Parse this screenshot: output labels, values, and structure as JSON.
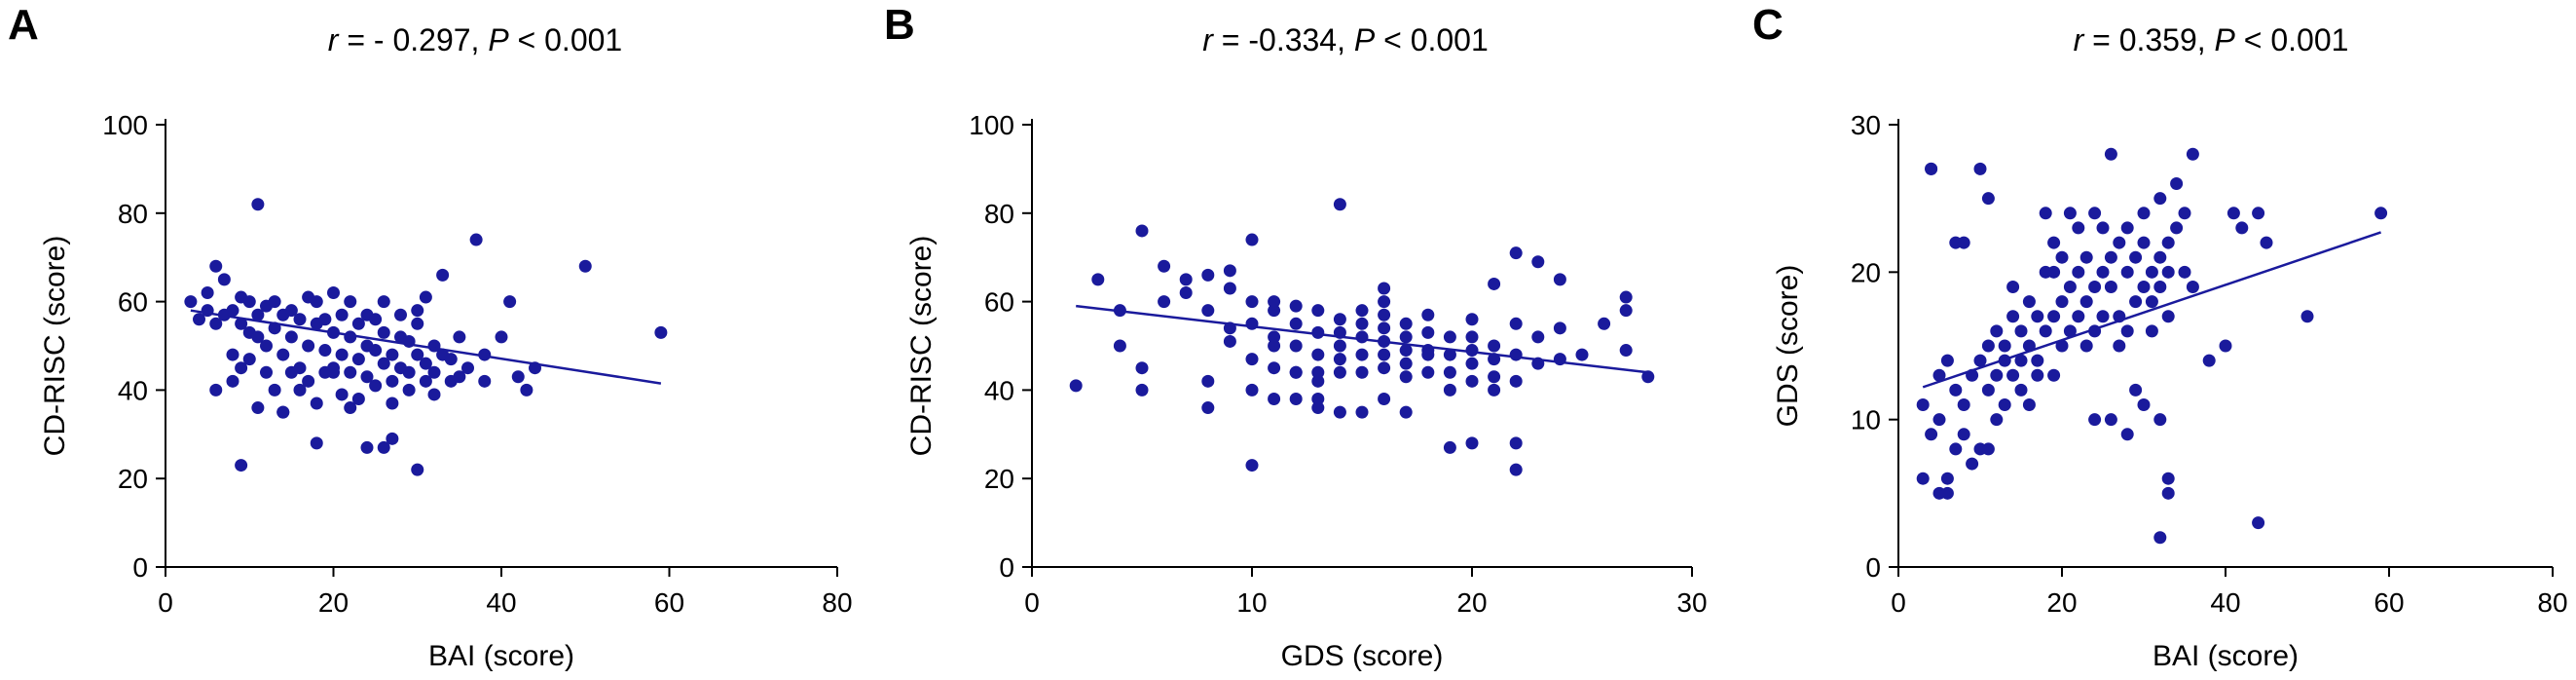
{
  "chart_data": [
    {
      "type": "scatter",
      "panel_label": "A",
      "title_r_label": "r",
      "title_r_value": " = - 0.297, ",
      "title_p_label": "P",
      "title_p_value": " < 0.001",
      "xlabel": "BAI (score)",
      "ylabel": "CD-RISC (score)",
      "xlim": [
        0,
        80
      ],
      "ylim": [
        0,
        100
      ],
      "xticks": [
        "0",
        "20",
        "40",
        "60",
        "80"
      ],
      "yticks": [
        "0",
        "20",
        "40",
        "60",
        "80",
        "100"
      ],
      "xtick_values": [
        0,
        20,
        40,
        60,
        80
      ],
      "ytick_values": [
        0,
        20,
        40,
        60,
        80,
        100
      ],
      "trendline": {
        "x": [
          3,
          59
        ],
        "y": [
          58,
          41.5
        ]
      },
      "marker_color": "#1a1a9c",
      "x": [
        3,
        4,
        5,
        5,
        6,
        6,
        7,
        7,
        8,
        8,
        9,
        9,
        9,
        10,
        10,
        10,
        11,
        11,
        11,
        12,
        12,
        12,
        13,
        13,
        13,
        14,
        14,
        14,
        15,
        15,
        15,
        16,
        16,
        16,
        17,
        17,
        17,
        18,
        18,
        18,
        19,
        19,
        19,
        20,
        20,
        20,
        21,
        21,
        21,
        22,
        22,
        22,
        23,
        23,
        23,
        24,
        24,
        24,
        25,
        25,
        25,
        26,
        26,
        26,
        27,
        27,
        27,
        28,
        28,
        28,
        29,
        29,
        29,
        30,
        30,
        30,
        31,
        31,
        31,
        32,
        32,
        32,
        33,
        33,
        34,
        34,
        35,
        35,
        36,
        37,
        38,
        38,
        40,
        41,
        42,
        43,
        44,
        50,
        59,
        6,
        8,
        9,
        11,
        14,
        18,
        20,
        22,
        24,
        26,
        27,
        30
      ],
      "y": [
        60,
        56,
        62,
        58,
        68,
        55,
        65,
        57,
        58,
        48,
        55,
        61,
        45,
        53,
        60,
        47,
        82,
        57,
        52,
        59,
        50,
        44,
        60,
        54,
        40,
        57,
        48,
        35,
        58,
        52,
        44,
        56,
        45,
        40,
        61,
        50,
        42,
        55,
        60,
        37,
        49,
        56,
        44,
        62,
        53,
        45,
        57,
        48,
        39,
        52,
        44,
        60,
        55,
        47,
        38,
        50,
        43,
        57,
        49,
        56,
        41,
        46,
        53,
        60,
        48,
        42,
        37,
        52,
        45,
        57,
        51,
        40,
        44,
        58,
        48,
        55,
        46,
        42,
        61,
        50,
        44,
        39,
        66,
        48,
        47,
        42,
        52,
        43,
        45,
        74,
        48,
        42,
        52,
        60,
        43,
        40,
        45,
        68,
        53,
        40,
        42,
        23,
        36,
        35,
        28,
        44,
        36,
        27,
        27,
        29,
        22
      ]
    },
    {
      "type": "scatter",
      "panel_label": "B",
      "title_r_label": "r",
      "title_r_value": " = -0.334, ",
      "title_p_label": "P",
      "title_p_value": " < 0.001",
      "xlabel": "GDS (score)",
      "ylabel": "CD-RISC (score)",
      "xlim": [
        0,
        30
      ],
      "ylim": [
        0,
        100
      ],
      "xticks": [
        "0",
        "10",
        "20",
        "30"
      ],
      "yticks": [
        "0",
        "20",
        "40",
        "60",
        "80",
        "100"
      ],
      "xtick_values": [
        0,
        10,
        20,
        30
      ],
      "ytick_values": [
        0,
        20,
        40,
        60,
        80,
        100
      ],
      "trendline": {
        "x": [
          2,
          28
        ],
        "y": [
          59,
          44
        ]
      },
      "marker_color": "#1a1a9c",
      "x": [
        2,
        3,
        4,
        4,
        5,
        5,
        5,
        6,
        6,
        7,
        7,
        8,
        8,
        8,
        9,
        9,
        9,
        10,
        10,
        10,
        10,
        10,
        11,
        11,
        11,
        11,
        11,
        12,
        12,
        12,
        12,
        12,
        13,
        13,
        13,
        13,
        13,
        14,
        14,
        14,
        14,
        14,
        14,
        15,
        15,
        15,
        15,
        15,
        16,
        16,
        16,
        16,
        16,
        16,
        16,
        17,
        17,
        17,
        17,
        17,
        18,
        18,
        18,
        18,
        19,
        19,
        19,
        19,
        20,
        20,
        20,
        20,
        20,
        21,
        21,
        21,
        21,
        22,
        22,
        22,
        22,
        23,
        23,
        23,
        24,
        24,
        24,
        25,
        26,
        27,
        27,
        27,
        28,
        10,
        11,
        13,
        14,
        17,
        19,
        20,
        22,
        22,
        16,
        12,
        18,
        15,
        21,
        9,
        8,
        13
      ],
      "y": [
        41,
        65,
        58,
        50,
        76,
        45,
        40,
        68,
        60,
        65,
        62,
        66,
        58,
        42,
        67,
        63,
        54,
        74,
        60,
        55,
        47,
        40,
        60,
        58,
        52,
        45,
        38,
        59,
        55,
        50,
        44,
        38,
        58,
        53,
        48,
        42,
        36,
        56,
        53,
        50,
        47,
        44,
        35,
        58,
        55,
        52,
        48,
        44,
        63,
        60,
        57,
        54,
        51,
        48,
        45,
        55,
        52,
        49,
        46,
        43,
        57,
        53,
        49,
        44,
        52,
        48,
        44,
        40,
        56,
        52,
        49,
        46,
        42,
        64,
        50,
        47,
        43,
        71,
        55,
        48,
        42,
        69,
        52,
        46,
        65,
        54,
        47,
        48,
        55,
        61,
        58,
        49,
        43,
        23,
        50,
        38,
        82,
        35,
        27,
        28,
        28,
        22,
        38,
        44,
        48,
        35,
        40,
        51,
        36,
        44
      ]
    },
    {
      "type": "scatter",
      "panel_label": "C",
      "title_r_label": "r",
      "title_r_value": " = 0.359, ",
      "title_p_label": "P",
      "title_p_value": " < 0.001",
      "xlabel": "BAI (score)",
      "ylabel": "GDS (score)",
      "xlim": [
        0,
        80
      ],
      "ylim": [
        0,
        30
      ],
      "xticks": [
        "0",
        "20",
        "40",
        "60",
        "80"
      ],
      "yticks": [
        "0",
        "10",
        "20",
        "30"
      ],
      "xtick_values": [
        0,
        20,
        40,
        60,
        80
      ],
      "ytick_values": [
        0,
        10,
        20,
        30
      ],
      "trendline": {
        "x": [
          3,
          59
        ],
        "y": [
          12.2,
          22.7
        ]
      },
      "marker_color": "#1a1a9c",
      "x": [
        3,
        3,
        4,
        4,
        5,
        5,
        5,
        6,
        6,
        7,
        7,
        7,
        8,
        8,
        8,
        9,
        9,
        10,
        10,
        10,
        11,
        11,
        11,
        12,
        12,
        12,
        13,
        13,
        13,
        14,
        14,
        14,
        15,
        15,
        15,
        16,
        16,
        16,
        17,
        17,
        17,
        18,
        18,
        18,
        19,
        19,
        19,
        20,
        20,
        20,
        21,
        21,
        21,
        22,
        22,
        22,
        23,
        23,
        23,
        24,
        24,
        24,
        25,
        25,
        25,
        26,
        26,
        26,
        27,
        27,
        27,
        28,
        28,
        28,
        29,
        29,
        29,
        30,
        30,
        30,
        31,
        31,
        31,
        32,
        32,
        32,
        33,
        33,
        33,
        34,
        34,
        35,
        35,
        36,
        36,
        38,
        40,
        41,
        42,
        44,
        45,
        50,
        59,
        4,
        6,
        11,
        19,
        24,
        26,
        30,
        32,
        33,
        33,
        44,
        28,
        32
      ],
      "y": [
        11,
        6,
        27,
        9,
        5,
        10,
        13,
        14,
        5,
        12,
        22,
        8,
        22,
        11,
        9,
        13,
        7,
        14,
        8,
        27,
        15,
        12,
        25,
        16,
        13,
        10,
        15,
        14,
        11,
        17,
        19,
        13,
        16,
        14,
        12,
        18,
        15,
        11,
        17,
        14,
        13,
        24,
        16,
        20,
        17,
        22,
        13,
        18,
        15,
        21,
        19,
        16,
        24,
        20,
        17,
        23,
        18,
        15,
        21,
        24,
        19,
        16,
        20,
        17,
        23,
        19,
        21,
        28,
        22,
        17,
        15,
        20,
        16,
        23,
        18,
        21,
        12,
        19,
        22,
        24,
        20,
        18,
        16,
        21,
        25,
        19,
        22,
        20,
        17,
        23,
        26,
        24,
        20,
        28,
        19,
        14,
        15,
        24,
        23,
        24,
        22,
        17,
        24,
        27,
        6,
        8,
        20,
        10,
        10,
        11,
        10,
        5,
        6,
        3,
        9,
        2
      ]
    }
  ]
}
